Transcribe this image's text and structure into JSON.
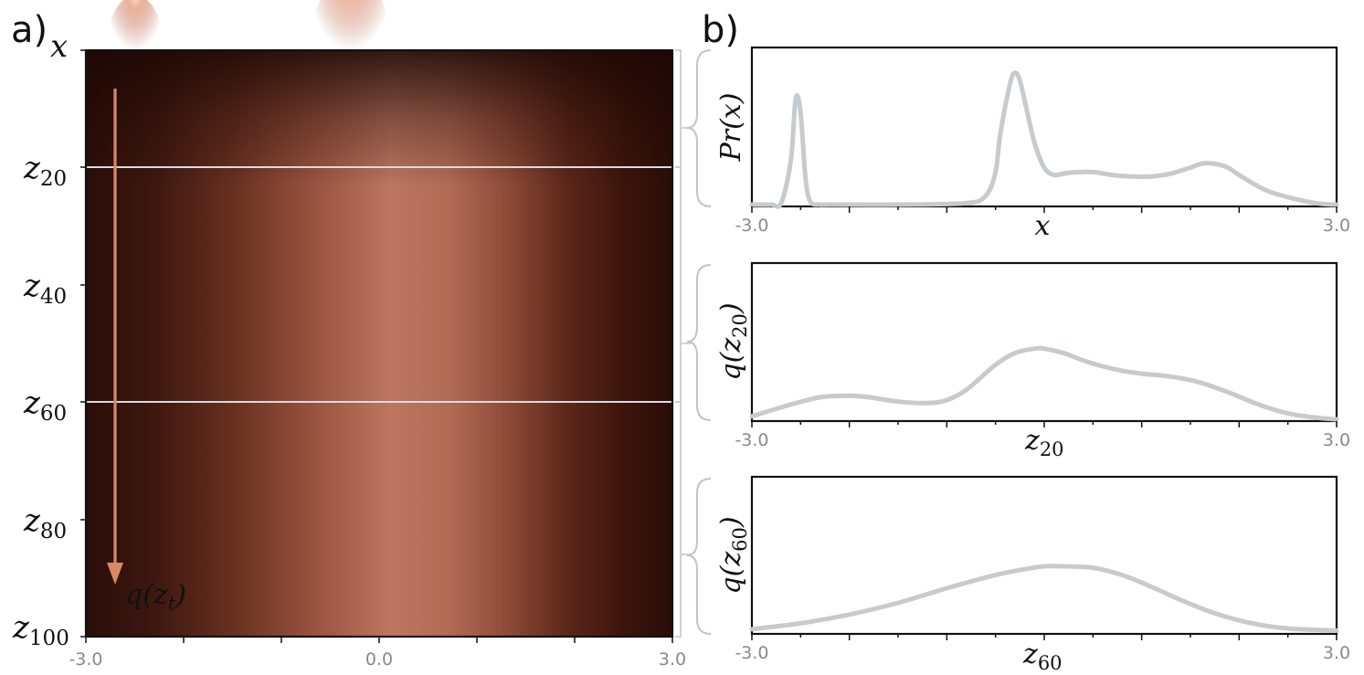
{
  "panels": {
    "a_label": "a)",
    "b_label": "b)"
  },
  "heatmap": {
    "x_var": "x",
    "x_tick_labels": [
      "-3.0",
      "0.0",
      "3.0"
    ],
    "row_labels": [
      {
        "base": "z",
        "sub": "20"
      },
      {
        "base": "z",
        "sub": "40"
      },
      {
        "base": "z",
        "sub": "60"
      },
      {
        "base": "z",
        "sub": "80"
      },
      {
        "base": "z",
        "sub": "100"
      }
    ],
    "arrow_label": {
      "func": "q(",
      "base": "z",
      "sub": "t",
      "close": ")"
    },
    "arrow_color": "#d98866",
    "highlight_rows": [
      "20",
      "60"
    ]
  },
  "colors": {
    "heat_dark": "#2a0e08",
    "heat_light": "#c8826a",
    "density_line": "#c5cbcf"
  },
  "chart_data": [
    {
      "type": "heatmap",
      "xlim": [
        -3.0,
        3.0
      ],
      "ylim": [
        0,
        100
      ],
      "x_ticks": [
        -3.0,
        0.0,
        3.0
      ],
      "y_ticks": [
        20,
        40,
        60,
        80,
        100
      ],
      "description_values": {
        "early_peaks_x": [
          -2.55,
          -0.3
        ],
        "late_center_x": 0.2
      }
    },
    {
      "type": "line",
      "ylabel": "Pr(x)",
      "xlabel": "x",
      "xlim": [
        -3.0,
        3.0
      ],
      "x_tick_labels": [
        "-3.0",
        "3.0"
      ],
      "x": [
        -3.0,
        -2.8,
        -2.7,
        -2.6,
        -2.55,
        -2.5,
        -2.45,
        -2.4,
        -2.3,
        -2.2,
        -1.5,
        -0.8,
        -0.6,
        -0.5,
        -0.45,
        -0.35,
        -0.3,
        -0.25,
        -0.2,
        -0.1,
        0.0,
        0.1,
        0.2,
        0.35,
        0.5,
        0.7,
        0.9,
        1.1,
        1.3,
        1.5,
        1.65,
        1.85,
        2.0,
        2.15,
        2.3,
        2.5,
        2.7,
        2.85,
        3.0
      ],
      "y": [
        0.0,
        0.0,
        0.01,
        0.3,
        0.72,
        0.62,
        0.18,
        0.02,
        0.0,
        0.0,
        0.0,
        0.01,
        0.06,
        0.22,
        0.48,
        0.82,
        0.89,
        0.84,
        0.7,
        0.42,
        0.25,
        0.2,
        0.21,
        0.22,
        0.22,
        0.2,
        0.19,
        0.19,
        0.21,
        0.25,
        0.28,
        0.26,
        0.2,
        0.14,
        0.09,
        0.05,
        0.02,
        0.005,
        0.0
      ],
      "ylim": [
        0,
        1.0
      ]
    },
    {
      "type": "line",
      "ylabel": "q(z20)",
      "xlabel": "z20",
      "xlim": [
        -3.0,
        3.0
      ],
      "x_tick_labels": [
        "-3.0",
        "3.0"
      ],
      "x": [
        -3.0,
        -2.6,
        -2.3,
        -2.0,
        -1.8,
        -1.5,
        -1.2,
        -1.0,
        -0.8,
        -0.5,
        -0.3,
        -0.1,
        0.0,
        0.2,
        0.4,
        0.6,
        0.8,
        1.0,
        1.3,
        1.6,
        1.9,
        2.2,
        2.5,
        2.8,
        3.0
      ],
      "y": [
        0.02,
        0.1,
        0.15,
        0.16,
        0.15,
        0.12,
        0.11,
        0.13,
        0.2,
        0.37,
        0.45,
        0.48,
        0.48,
        0.45,
        0.4,
        0.36,
        0.33,
        0.31,
        0.29,
        0.25,
        0.18,
        0.1,
        0.04,
        0.01,
        0.0
      ],
      "ylim": [
        0,
        1.0
      ]
    },
    {
      "type": "line",
      "ylabel": "q(z60)",
      "xlabel": "z60",
      "xlim": [
        -3.0,
        3.0
      ],
      "x_tick_labels": [
        "-3.0",
        "3.0"
      ],
      "x": [
        -3.0,
        -2.5,
        -2.0,
        -1.5,
        -1.0,
        -0.5,
        -0.2,
        0.0,
        0.2,
        0.5,
        0.8,
        1.1,
        1.4,
        1.7,
        2.0,
        2.3,
        2.6,
        3.0
      ],
      "y": [
        0.02,
        0.06,
        0.12,
        0.2,
        0.3,
        0.39,
        0.43,
        0.45,
        0.45,
        0.44,
        0.39,
        0.31,
        0.22,
        0.14,
        0.08,
        0.04,
        0.02,
        0.01
      ],
      "ylim": [
        0,
        1.0
      ]
    }
  ]
}
